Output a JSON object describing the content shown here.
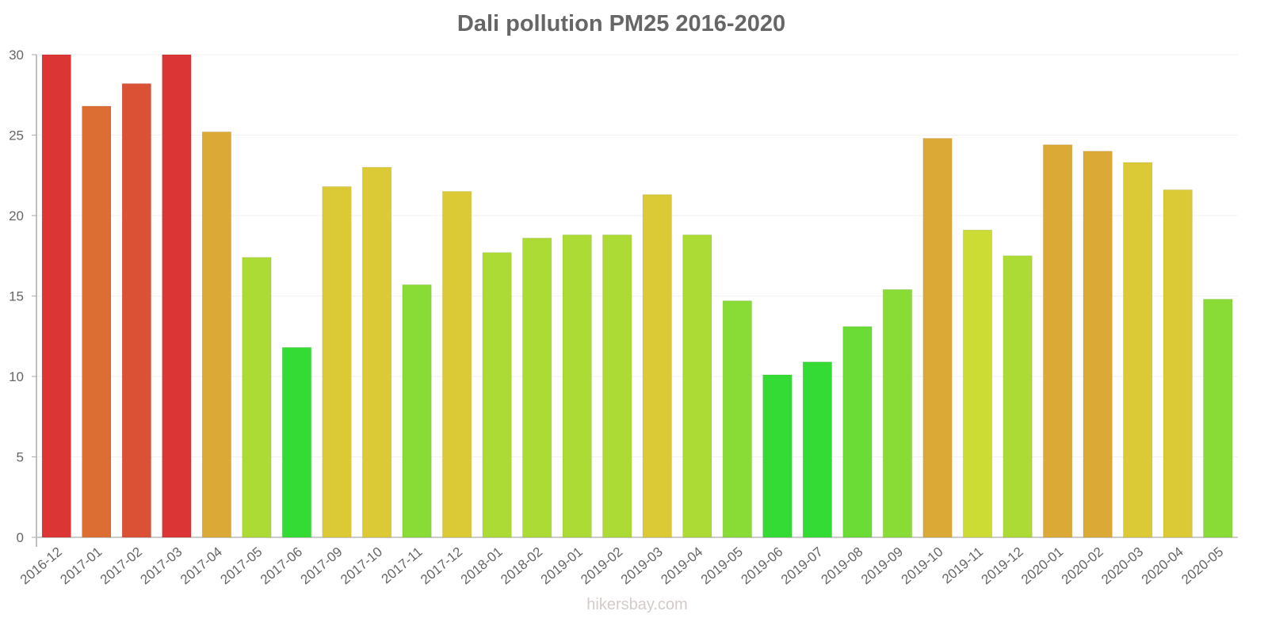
{
  "chart_data": {
    "type": "bar",
    "title": "Dali pollution PM25 2016-2020",
    "xlabel": "",
    "ylabel": "",
    "ylim": [
      0,
      30
    ],
    "yticks": [
      0,
      5,
      10,
      15,
      20,
      25,
      30
    ],
    "grid": true,
    "legend": null,
    "categories": [
      "2016-12",
      "2017-01",
      "2017-02",
      "2017-03",
      "2017-04",
      "2017-05",
      "2017-06",
      "2017-09",
      "2017-10",
      "2017-11",
      "2017-12",
      "2018-01",
      "2018-02",
      "2019-01",
      "2019-02",
      "2019-03",
      "2019-04",
      "2019-05",
      "2019-06",
      "2019-07",
      "2019-08",
      "2019-09",
      "2019-10",
      "2019-11",
      "2019-12",
      "2020-01",
      "2020-02",
      "2020-03",
      "2020-04",
      "2020-05"
    ],
    "values": [
      30,
      26.8,
      28.2,
      30,
      25.2,
      17.4,
      11.8,
      21.8,
      23.0,
      15.7,
      21.5,
      17.7,
      18.6,
      18.8,
      18.8,
      21.3,
      18.8,
      14.7,
      10.1,
      10.9,
      13.1,
      15.4,
      24.8,
      19.1,
      17.5,
      24.4,
      24.0,
      23.3,
      21.6,
      14.8
    ],
    "colors": [
      "#db3535",
      "#dc6e34",
      "#da5135",
      "#db3535",
      "#dba935",
      "#acdb35",
      "#35db35",
      "#dbca35",
      "#dbca35",
      "#89db35",
      "#dbca35",
      "#acdb35",
      "#acdb35",
      "#acdb35",
      "#acdb35",
      "#dbca35",
      "#acdb35",
      "#89db35",
      "#35db35",
      "#35db35",
      "#6bdb35",
      "#89db35",
      "#dba935",
      "#cddb35",
      "#acdb35",
      "#dba935",
      "#dba935",
      "#dbca35",
      "#dbca35",
      "#89db35"
    ]
  },
  "footer": {
    "watermark": "hikersbay.com"
  }
}
